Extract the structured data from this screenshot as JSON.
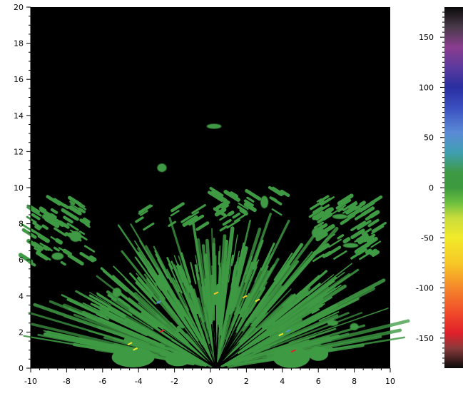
{
  "chart_data": {
    "type": "heatmap",
    "title": "",
    "xlabel": "",
    "ylabel": "",
    "xlim": [
      -10,
      10
    ],
    "ylim": [
      0,
      20
    ],
    "x_ticks": [
      "-10",
      "-8",
      "-6",
      "-4",
      "-2",
      "0",
      "2",
      "4",
      "6",
      "8",
      "10"
    ],
    "y_ticks": [
      "0",
      "2",
      "4",
      "6",
      "8",
      "10",
      "12",
      "14",
      "16",
      "18",
      "20"
    ],
    "background_color": "#000000",
    "dominant_value_color": "#3f9a44",
    "colorbar": {
      "range": [
        -180,
        180
      ],
      "ticks": [
        "150",
        "100",
        "50",
        "0",
        "-50",
        "-100",
        "-150"
      ],
      "stops": [
        {
          "value": 180,
          "color": "#0a0a0a"
        },
        {
          "value": 160,
          "color": "#4a3a4a"
        },
        {
          "value": 140,
          "color": "#8a3d8f"
        },
        {
          "value": 120,
          "color": "#5b3a9e"
        },
        {
          "value": 100,
          "color": "#2a2fa0"
        },
        {
          "value": 80,
          "color": "#3a4fc0"
        },
        {
          "value": 55,
          "color": "#5b8ad6"
        },
        {
          "value": 35,
          "color": "#3f9fb0"
        },
        {
          "value": 15,
          "color": "#3f9a44"
        },
        {
          "value": 0,
          "color": "#3d9a3d"
        },
        {
          "value": -15,
          "color": "#6cbf3f"
        },
        {
          "value": -30,
          "color": "#c8dc3c"
        },
        {
          "value": -50,
          "color": "#f2ea2a"
        },
        {
          "value": -75,
          "color": "#f6c826"
        },
        {
          "value": -100,
          "color": "#f5872a"
        },
        {
          "value": -125,
          "color": "#f04a2a"
        },
        {
          "value": -145,
          "color": "#e0202a"
        },
        {
          "value": -160,
          "color": "#8a3a3a"
        },
        {
          "value": -180,
          "color": "#0a0a0a"
        }
      ]
    },
    "blobs": [
      {
        "x": 0.2,
        "y": 13.4
      },
      {
        "x": -2.7,
        "y": 11.1
      },
      {
        "x": -9.0,
        "y": 8.4
      },
      {
        "x": -7.5,
        "y": 7.3
      },
      {
        "x": -8.5,
        "y": 6.2
      },
      {
        "x": 7.2,
        "y": 8.4
      },
      {
        "x": 6.0,
        "y": 7.5
      },
      {
        "x": 7.8,
        "y": 6.8
      },
      {
        "x": 3.0,
        "y": 9.2
      },
      {
        "x": -5.5,
        "y": 1.2
      },
      {
        "x": -2.5,
        "y": 0.8
      },
      {
        "x": 4.5,
        "y": 0.9
      },
      {
        "x": 6.8,
        "y": 2.5
      },
      {
        "x": 8.0,
        "y": 2.3
      },
      {
        "x": -5.2,
        "y": 4.2
      }
    ]
  }
}
